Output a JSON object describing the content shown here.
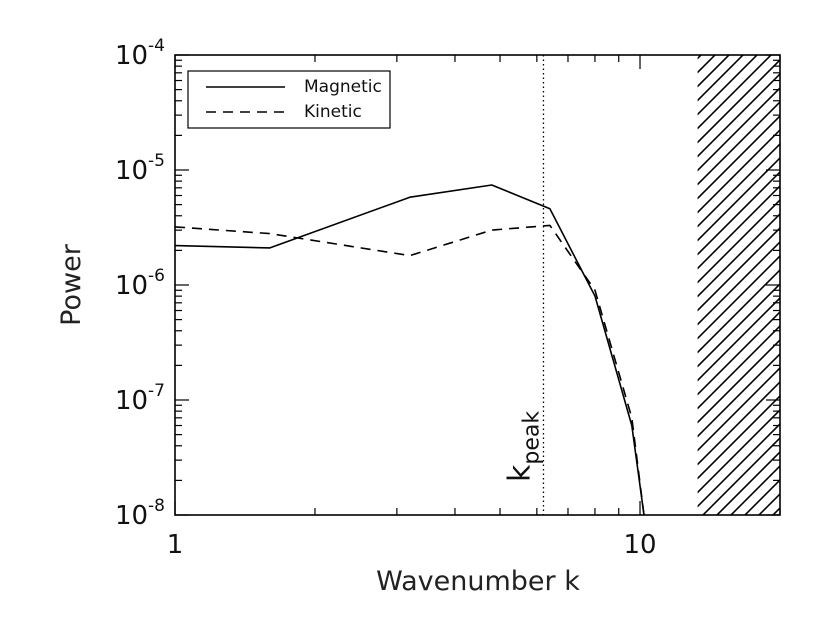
{
  "chart_data": {
    "type": "line",
    "title": "",
    "xlabel": "Wavenumber  k",
    "ylabel": "Power",
    "xscale": "log",
    "yscale": "log",
    "xlim": [
      1,
      20
    ],
    "ylim": [
      1e-08,
      0.0001
    ],
    "x_ticks": [
      {
        "value": 1,
        "label": "1"
      },
      {
        "value": 10,
        "label": "10"
      }
    ],
    "y_ticks": [
      {
        "value": 0.0001,
        "base": "10",
        "exp": "-4"
      },
      {
        "value": 1e-05,
        "base": "10",
        "exp": "-5"
      },
      {
        "value": 1e-06,
        "base": "10",
        "exp": "-6"
      },
      {
        "value": 1e-07,
        "base": "10",
        "exp": "-7"
      },
      {
        "value": 1e-08,
        "base": "10",
        "exp": "-8"
      }
    ],
    "legend_position": "top-left",
    "series": [
      {
        "name": "Magnetic",
        "style": "solid",
        "x": [
          1,
          1.6,
          3.2,
          4.8,
          6.4,
          8,
          9.6,
          10.2
        ],
        "y": [
          2.2e-06,
          2.1e-06,
          5.8e-06,
          7.4e-06,
          4.6e-06,
          8e-07,
          6e-08,
          1e-08
        ]
      },
      {
        "name": "Kinetic",
        "style": "dashed",
        "x": [
          1,
          1.6,
          3.2,
          4.8,
          6.4,
          8,
          9.6,
          10.2
        ],
        "y": [
          3.2e-06,
          2.8e-06,
          1.8e-06,
          3e-06,
          3.3e-06,
          9e-07,
          7e-08,
          1e-08
        ]
      }
    ],
    "annotations": {
      "kpeak": {
        "x": 6.2,
        "label_main": "k",
        "label_sub": "peak",
        "style": "dotted"
      },
      "hatched_region": {
        "x_start": 13.3,
        "x_end": 20
      }
    }
  }
}
